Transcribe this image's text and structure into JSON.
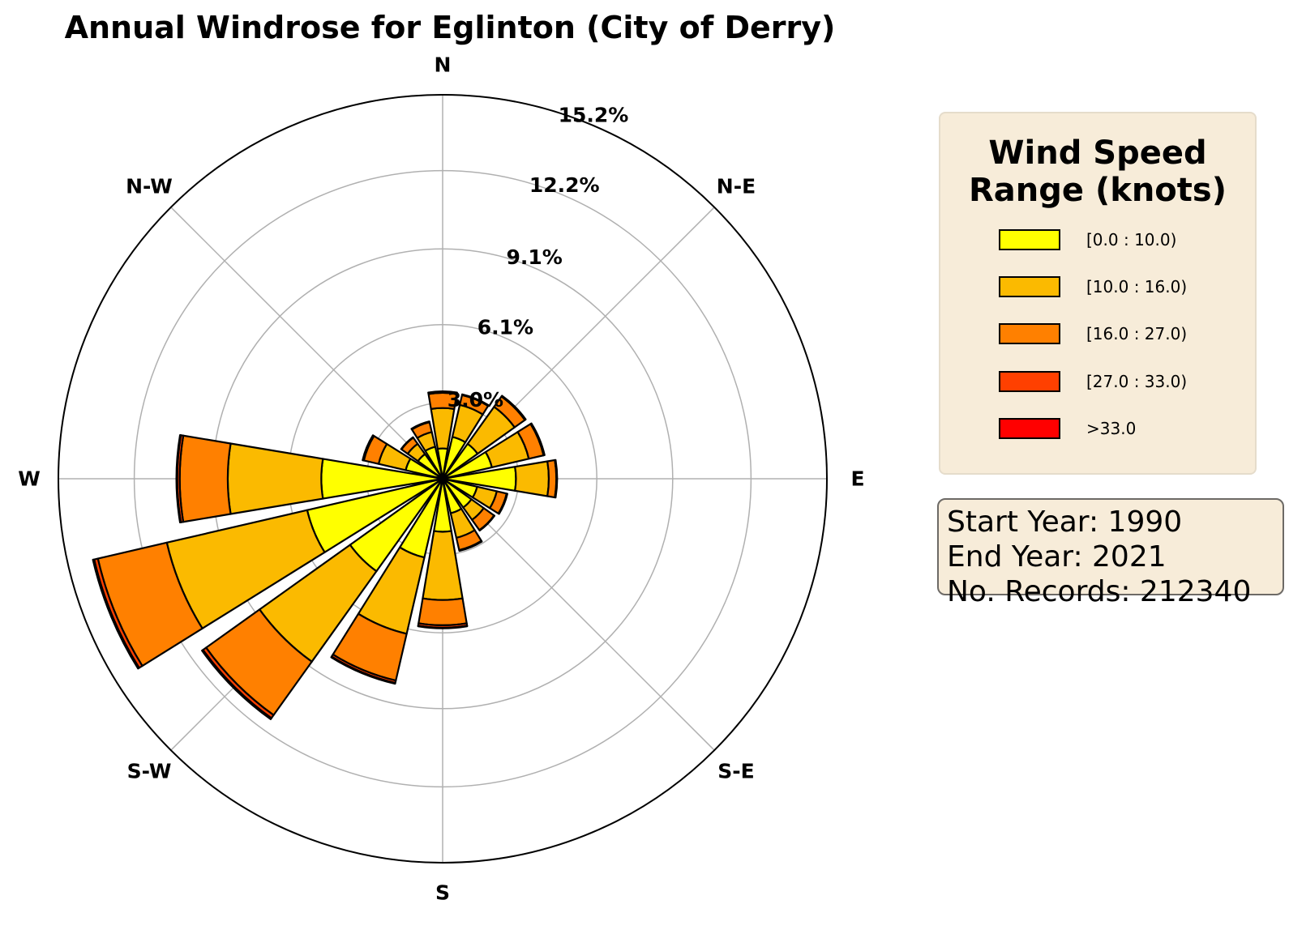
{
  "chart_data": {
    "type": "windrose",
    "title": "Annual Windrose for Eglinton (City of Derry)",
    "directions": [
      "N",
      "NNE",
      "NE",
      "ENE",
      "E",
      "ESE",
      "SE",
      "SSE",
      "S",
      "SSW",
      "SW",
      "WSW",
      "W",
      "WNW",
      "NW",
      "NNW"
    ],
    "direction_labels": [
      "N",
      "N-E",
      "E",
      "S-E",
      "S",
      "S-W",
      "W",
      "N-W"
    ],
    "radial_ticks": [
      "3.0%",
      "6.1%",
      "9.1%",
      "12.2%",
      "15.2%"
    ],
    "radial_tick_values": [
      3.0,
      6.1,
      9.1,
      12.2,
      15.2
    ],
    "rmax_percent": 15.2,
    "grid": true,
    "series": [
      {
        "name": "[0.0 : 10.0)",
        "color": "#ffff00",
        "values": [
          1.2,
          1.7,
          1.7,
          2.0,
          2.9,
          1.4,
          1.4,
          1.4,
          2.1,
          3.2,
          4.5,
          5.5,
          4.8,
          1.5,
          1.2,
          1.3
        ]
      },
      {
        "name": "[10.0 : 16.0)",
        "color": "#fbba00",
        "values": [
          1.6,
          1.3,
          1.8,
          1.5,
          1.3,
          0.8,
          0.6,
          1.0,
          2.7,
          3.1,
          4.4,
          5.7,
          3.7,
          1.1,
          0.5,
          0.6
        ]
      },
      {
        "name": "[16.0 : 27.0)",
        "color": "#ff8000",
        "values": [
          0.6,
          0.4,
          0.5,
          0.6,
          0.3,
          0.4,
          0.5,
          0.5,
          1.0,
          1.9,
          2.6,
          2.8,
          1.9,
          0.6,
          0.3,
          0.4
        ]
      },
      {
        "name": "[27.0 : 33.0)",
        "color": "#ff4000",
        "values": [
          0.05,
          0.03,
          0.04,
          0.04,
          0.03,
          0.03,
          0.02,
          0.03,
          0.1,
          0.1,
          0.15,
          0.15,
          0.1,
          0.04,
          0.02,
          0.03
        ]
      },
      {
        "name": ">33.0",
        "color": "#ff0000",
        "values": [
          0.01,
          0.0,
          0.0,
          0.0,
          0.0,
          0.0,
          0.0,
          0.0,
          0.02,
          0.03,
          0.05,
          0.05,
          0.03,
          0.01,
          0.0,
          0.0
        ]
      }
    ]
  },
  "legend": {
    "title": "Wind Speed Range (knots)",
    "entries": [
      "[0.0 : 10.0)",
      "[10.0 : 16.0)",
      "[16.0 : 27.0)",
      "[27.0 : 33.0)",
      ">33.0"
    ]
  },
  "info": {
    "start_year": "Start Year: 1990",
    "end_year": "End Year: 2021",
    "records": "No. Records: 212340"
  }
}
